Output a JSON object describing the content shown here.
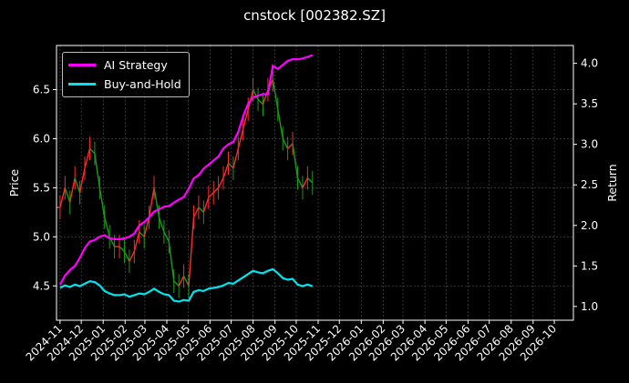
{
  "chart_data": {
    "type": "line",
    "title": "cnstock [002382.SZ]",
    "ylabel": "Price",
    "y2label": "Return",
    "x_ticks": [
      "2024-11",
      "2024-12",
      "2025-01",
      "2025-02",
      "2025-03",
      "2025-04",
      "2025-05",
      "2025-06",
      "2025-07",
      "2025-08",
      "2025-09",
      "2025-10",
      "2025-11",
      "2025-12",
      "2026-01",
      "2026-02",
      "2026-03",
      "2026-04",
      "2026-05",
      "2026-06",
      "2026-07",
      "2026-08",
      "2026-09",
      "2026-10"
    ],
    "xlim": [
      "2024-10-27",
      "2026-10-28"
    ],
    "ylim": [
      4.15,
      6.95
    ],
    "y_ticks": [
      4.5,
      5.0,
      5.5,
      6.0,
      6.5
    ],
    "y2lim": [
      0.83,
      4.22
    ],
    "y2_ticks": [
      1.0,
      1.5,
      2.0,
      2.5,
      3.0,
      3.5,
      4.0
    ],
    "grid": true,
    "legend_position": "top-left",
    "price_candles": {
      "up_color": "#ff2a2a",
      "down_color": "#1a9c1a",
      "close": [
        [
          "2024-11-01",
          5.3
        ],
        [
          "2024-11-08",
          5.5
        ],
        [
          "2024-11-15",
          5.35
        ],
        [
          "2024-11-22",
          5.6
        ],
        [
          "2024-11-29",
          5.45
        ],
        [
          "2024-12-06",
          5.7
        ],
        [
          "2024-12-13",
          5.9
        ],
        [
          "2024-12-20",
          5.85
        ],
        [
          "2024-12-27",
          5.5
        ],
        [
          "2025-01-03",
          5.2
        ],
        [
          "2025-01-10",
          5.0
        ],
        [
          "2025-01-17",
          4.9
        ],
        [
          "2025-01-24",
          4.9
        ],
        [
          "2025-01-31",
          4.85
        ],
        [
          "2025-02-07",
          4.75
        ],
        [
          "2025-02-14",
          4.85
        ],
        [
          "2025-02-21",
          5.05
        ],
        [
          "2025-02-28",
          5.0
        ],
        [
          "2025-03-07",
          5.2
        ],
        [
          "2025-03-14",
          5.5
        ],
        [
          "2025-03-21",
          5.2
        ],
        [
          "2025-03-28",
          5.05
        ],
        [
          "2025-04-04",
          4.95
        ],
        [
          "2025-04-11",
          4.55
        ],
        [
          "2025-04-18",
          4.5
        ],
        [
          "2025-04-25",
          4.6
        ],
        [
          "2025-05-02",
          4.5
        ],
        [
          "2025-05-09",
          5.2
        ],
        [
          "2025-05-16",
          5.3
        ],
        [
          "2025-05-23",
          5.25
        ],
        [
          "2025-05-30",
          5.4
        ],
        [
          "2025-06-06",
          5.45
        ],
        [
          "2025-06-13",
          5.5
        ],
        [
          "2025-06-20",
          5.6
        ],
        [
          "2025-06-27",
          5.75
        ],
        [
          "2025-07-04",
          5.7
        ],
        [
          "2025-07-11",
          5.9
        ],
        [
          "2025-07-18",
          6.1
        ],
        [
          "2025-07-25",
          6.3
        ],
        [
          "2025-08-01",
          6.5
        ],
        [
          "2025-08-08",
          6.4
        ],
        [
          "2025-08-15",
          6.35
        ],
        [
          "2025-08-22",
          6.5
        ],
        [
          "2025-08-29",
          6.6
        ],
        [
          "2025-09-05",
          6.3
        ],
        [
          "2025-09-12",
          6.0
        ],
        [
          "2025-09-19",
          5.9
        ],
        [
          "2025-09-26",
          5.95
        ],
        [
          "2025-10-03",
          5.6
        ],
        [
          "2025-10-10",
          5.5
        ],
        [
          "2025-10-17",
          5.6
        ],
        [
          "2025-10-24",
          5.55
        ]
      ]
    },
    "series": [
      {
        "name": "AI Strategy",
        "color": "#ff00ff",
        "axis": "right",
        "points": [
          [
            "2024-11-01",
            1.27
          ],
          [
            "2024-11-08",
            1.38
          ],
          [
            "2024-11-15",
            1.45
          ],
          [
            "2024-11-22",
            1.5
          ],
          [
            "2024-11-29",
            1.6
          ],
          [
            "2024-12-06",
            1.72
          ],
          [
            "2024-12-13",
            1.8
          ],
          [
            "2024-12-20",
            1.82
          ],
          [
            "2024-12-27",
            1.86
          ],
          [
            "2025-01-03",
            1.88
          ],
          [
            "2025-01-10",
            1.84
          ],
          [
            "2025-01-17",
            1.83
          ],
          [
            "2025-01-24",
            1.83
          ],
          [
            "2025-01-31",
            1.84
          ],
          [
            "2025-02-07",
            1.86
          ],
          [
            "2025-02-14",
            1.9
          ],
          [
            "2025-02-21",
            2.0
          ],
          [
            "2025-02-28",
            2.04
          ],
          [
            "2025-03-07",
            2.1
          ],
          [
            "2025-03-14",
            2.17
          ],
          [
            "2025-03-21",
            2.2
          ],
          [
            "2025-03-28",
            2.23
          ],
          [
            "2025-04-04",
            2.24
          ],
          [
            "2025-04-11",
            2.28
          ],
          [
            "2025-04-18",
            2.32
          ],
          [
            "2025-04-25",
            2.35
          ],
          [
            "2025-05-02",
            2.45
          ],
          [
            "2025-05-09",
            2.58
          ],
          [
            "2025-05-16",
            2.62
          ],
          [
            "2025-05-23",
            2.7
          ],
          [
            "2025-05-30",
            2.75
          ],
          [
            "2025-06-06",
            2.8
          ],
          [
            "2025-06-13",
            2.85
          ],
          [
            "2025-06-20",
            2.95
          ],
          [
            "2025-06-27",
            3.0
          ],
          [
            "2025-07-04",
            3.03
          ],
          [
            "2025-07-11",
            3.15
          ],
          [
            "2025-07-18",
            3.35
          ],
          [
            "2025-07-25",
            3.5
          ],
          [
            "2025-08-01",
            3.58
          ],
          [
            "2025-08-08",
            3.6
          ],
          [
            "2025-08-15",
            3.62
          ],
          [
            "2025-08-22",
            3.62
          ],
          [
            "2025-08-29",
            3.97
          ],
          [
            "2025-09-05",
            3.93
          ],
          [
            "2025-09-12",
            3.98
          ],
          [
            "2025-09-19",
            4.03
          ],
          [
            "2025-09-26",
            4.05
          ],
          [
            "2025-10-03",
            4.05
          ],
          [
            "2025-10-10",
            4.06
          ],
          [
            "2025-10-17",
            4.08
          ],
          [
            "2025-10-24",
            4.1
          ]
        ]
      },
      {
        "name": "Buy-and-Hold",
        "color": "#00e5ee",
        "axis": "right",
        "points": [
          [
            "2024-11-01",
            1.23
          ],
          [
            "2024-11-08",
            1.26
          ],
          [
            "2024-11-15",
            1.24
          ],
          [
            "2024-11-22",
            1.27
          ],
          [
            "2024-11-29",
            1.25
          ],
          [
            "2024-12-06",
            1.28
          ],
          [
            "2024-12-13",
            1.31
          ],
          [
            "2024-12-20",
            1.3
          ],
          [
            "2024-12-27",
            1.26
          ],
          [
            "2025-01-03",
            1.19
          ],
          [
            "2025-01-10",
            1.16
          ],
          [
            "2025-01-17",
            1.14
          ],
          [
            "2025-01-24",
            1.14
          ],
          [
            "2025-01-31",
            1.15
          ],
          [
            "2025-02-07",
            1.12
          ],
          [
            "2025-02-14",
            1.14
          ],
          [
            "2025-02-21",
            1.16
          ],
          [
            "2025-02-28",
            1.15
          ],
          [
            "2025-03-07",
            1.18
          ],
          [
            "2025-03-14",
            1.22
          ],
          [
            "2025-03-21",
            1.18
          ],
          [
            "2025-03-28",
            1.15
          ],
          [
            "2025-04-04",
            1.14
          ],
          [
            "2025-04-11",
            1.07
          ],
          [
            "2025-04-18",
            1.06
          ],
          [
            "2025-04-25",
            1.08
          ],
          [
            "2025-05-02",
            1.07
          ],
          [
            "2025-05-09",
            1.18
          ],
          [
            "2025-05-16",
            1.2
          ],
          [
            "2025-05-23",
            1.19
          ],
          [
            "2025-05-30",
            1.22
          ],
          [
            "2025-06-06",
            1.23
          ],
          [
            "2025-06-13",
            1.24
          ],
          [
            "2025-06-20",
            1.26
          ],
          [
            "2025-06-27",
            1.29
          ],
          [
            "2025-07-04",
            1.28
          ],
          [
            "2025-07-11",
            1.32
          ],
          [
            "2025-07-18",
            1.36
          ],
          [
            "2025-07-25",
            1.4
          ],
          [
            "2025-08-01",
            1.44
          ],
          [
            "2025-08-08",
            1.42
          ],
          [
            "2025-08-15",
            1.41
          ],
          [
            "2025-08-22",
            1.44
          ],
          [
            "2025-08-29",
            1.46
          ],
          [
            "2025-09-05",
            1.41
          ],
          [
            "2025-09-12",
            1.35
          ],
          [
            "2025-09-19",
            1.33
          ],
          [
            "2025-09-26",
            1.34
          ],
          [
            "2025-10-03",
            1.27
          ],
          [
            "2025-10-10",
            1.25
          ],
          [
            "2025-10-17",
            1.27
          ],
          [
            "2025-10-24",
            1.25
          ]
        ]
      }
    ]
  }
}
